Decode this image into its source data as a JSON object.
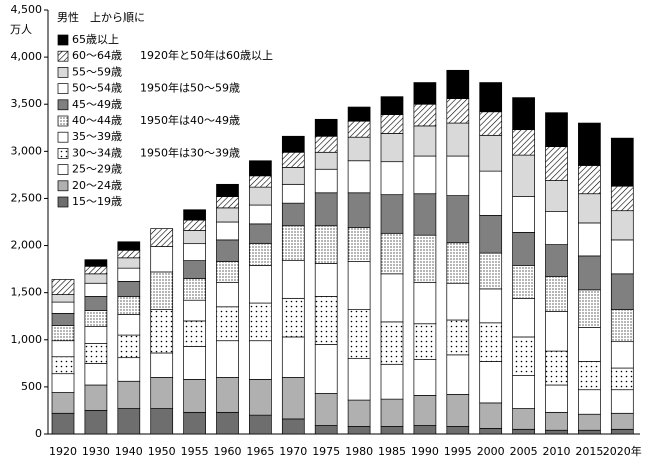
{
  "chart_data": {
    "type": "stacked-bar",
    "y_label": "万人",
    "legend_title": "男性　上から順に",
    "categories": [
      "1920",
      "1930",
      "1940",
      "1950",
      "1955",
      "1960",
      "1965",
      "1970",
      "1975",
      "1980",
      "1985",
      "1990",
      "1995",
      "2000",
      "2005",
      "2010",
      "2015",
      "2020年"
    ],
    "ylim": [
      0,
      4500
    ],
    "yticks": [
      0,
      500,
      {
        "value": 1000,
        "label": "1,000"
      },
      {
        "value": 1500,
        "label": "1,500"
      },
      {
        "value": 2000,
        "label": "2,000"
      },
      {
        "value": 2500,
        "label": "2,500"
      },
      {
        "value": 3000,
        "label": "3,000"
      },
      {
        "value": 3500,
        "label": "3,500"
      },
      {
        "value": 4000,
        "label": "4,000"
      },
      {
        "value": 4500,
        "label": "4,500"
      }
    ],
    "series": [
      {
        "name": "15～19歳",
        "color": "#6e6e6e",
        "pattern": "solid",
        "values": [
          220,
          250,
          270,
          270,
          230,
          230,
          200,
          160,
          90,
          80,
          80,
          90,
          80,
          60,
          50,
          40,
          40,
          50
        ]
      },
      {
        "name": "20～24歳",
        "color": "#b0b0b0",
        "pattern": "solid",
        "values": [
          220,
          270,
          290,
          330,
          350,
          370,
          380,
          440,
          340,
          280,
          290,
          320,
          340,
          270,
          220,
          190,
          170,
          170
        ]
      },
      {
        "name": "25～29歳",
        "color": "#ffffff",
        "pattern": "solid",
        "values": [
          200,
          230,
          250,
          260,
          350,
          390,
          410,
          430,
          520,
          440,
          370,
          380,
          420,
          440,
          350,
          290,
          260,
          250
        ]
      },
      {
        "name": "30～34歳",
        "note": "1950年は30～39歳",
        "color": "#ffffff",
        "pattern": "dots",
        "values": [
          180,
          210,
          240,
          460,
          270,
          360,
          400,
          410,
          510,
          520,
          450,
          380,
          370,
          410,
          410,
          360,
          300,
          230
        ]
      },
      {
        "name": "35～39歳",
        "color": "#ffffff",
        "pattern": "solid",
        "values": [
          170,
          180,
          220,
          null,
          220,
          260,
          400,
          400,
          350,
          510,
          510,
          440,
          390,
          360,
          410,
          420,
          360,
          280
        ]
      },
      {
        "name": "40～44歳",
        "note": "1950年は40～49歳",
        "color": "#ffffff",
        "pattern": "fine-dots",
        "values": [
          160,
          170,
          190,
          400,
          230,
          220,
          230,
          370,
          400,
          360,
          430,
          500,
          430,
          380,
          350,
          370,
          400,
          340
        ]
      },
      {
        "name": "45～49歳",
        "color": "#808080",
        "pattern": "solid",
        "values": [
          130,
          150,
          160,
          null,
          190,
          230,
          210,
          240,
          350,
          370,
          410,
          440,
          500,
          400,
          350,
          340,
          360,
          380
        ]
      },
      {
        "name": "50～54歳",
        "note": "1950年は50～59歳",
        "color": "#ffffff",
        "pattern": "solid",
        "values": [
          120,
          140,
          140,
          270,
          180,
          190,
          200,
          200,
          250,
          340,
          350,
          400,
          420,
          470,
          380,
          350,
          350,
          360
        ]
      },
      {
        "name": "55～59歳",
        "color": "#d9d9d9",
        "pattern": "solid",
        "values": [
          80,
          100,
          110,
          null,
          140,
          150,
          190,
          180,
          180,
          250,
          300,
          320,
          350,
          380,
          440,
          330,
          310,
          310
        ]
      },
      {
        "name": "60～64歳",
        "note": "1920年と50年は60歳以上",
        "color": "#ffffff",
        "pattern": "hatch",
        "values": [
          160,
          80,
          80,
          190,
          110,
          120,
          120,
          160,
          170,
          170,
          200,
          230,
          260,
          250,
          270,
          360,
          300,
          260
        ]
      },
      {
        "name": "65歳以上",
        "color": "#000000",
        "pattern": "solid",
        "values": [
          null,
          70,
          90,
          null,
          110,
          130,
          160,
          170,
          180,
          150,
          190,
          230,
          300,
          310,
          340,
          360,
          450,
          510
        ]
      }
    ]
  }
}
